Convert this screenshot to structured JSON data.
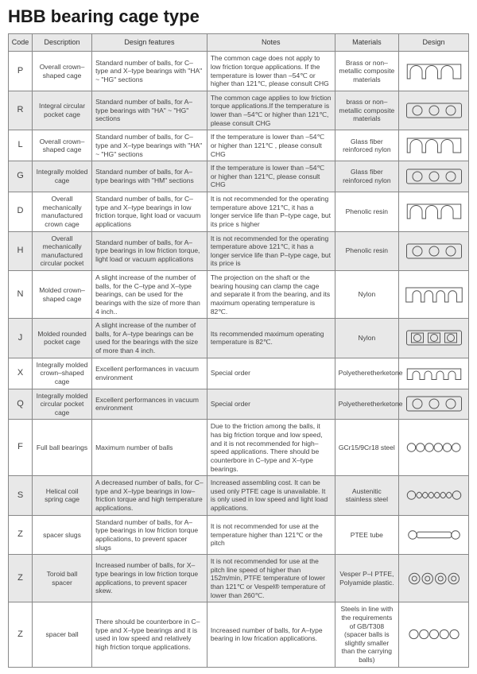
{
  "title": "HBB bearing cage type",
  "columns": [
    "Code",
    "Description",
    "Design features",
    "Notes",
    "Materials",
    "Design"
  ],
  "row_colors": {
    "plain": "#ffffff",
    "shaded": "#e8e8e8"
  },
  "border_color": "#888888",
  "svg_stroke": "#555555",
  "svg_stroke_width": 1.3,
  "rows": [
    {
      "code": "P",
      "desc": "Overall crown–shaped cage",
      "feat": "Standard number of balls, for C–type and X–type bearings with \"HA\" ~ \"HG\" sections",
      "notes": "The common cage does not apply to low friction torque applications. If the temperature is lower than –54℃ or higher than 121℃, please consult CHG",
      "mat": "Brass or non–metallic composite materials",
      "shaded": false,
      "shape": "crown3"
    },
    {
      "code": "R",
      "desc": "Integral circular pocket cage",
      "feat": "Standard number of balls, for A–type bearings with \"HA\" ~ \"HG\" sections",
      "notes": "The common cage applies to low friction torque applications.If the temperature is lower than –54℃ or higher than 121℃, please consult CHG",
      "mat": "brass or non–metallic composite materials",
      "shaded": true,
      "shape": "rect3circ"
    },
    {
      "code": "L",
      "desc": "Overall crown–shaped cage",
      "feat": "Standard number of balls, for C–type and X–type bearings with \"HA\" ~ \"HG\" sections",
      "notes": "If the temperature is lower than –54℃ or higher than 121℃ , please consult CHG",
      "mat": "Glass fiber reinforced nylon",
      "shaded": false,
      "shape": "crown3"
    },
    {
      "code": "G",
      "desc": "Integrally molded cage",
      "feat": "Standard number of balls, for A–type bearings with \"HM\" sections",
      "notes": "If the temperature is lower than –54℃ or higher than 121℃, please consult CHG",
      "mat": "Glass fiber reinforced nylon",
      "shaded": true,
      "shape": "rect3circ"
    },
    {
      "code": "D",
      "desc": "Overall mechanically manufactured crown cage",
      "feat": "Standard number of balls, for C–type and X–type bearings in low friction torque, light load or vacuum applications",
      "notes": "It is not recommended for the operating temperature above 121℃, it has a longer service life than P–type cage, but its price s higher",
      "mat": "Phenolic resin",
      "shaded": false,
      "shape": "crown3"
    },
    {
      "code": "H",
      "desc": "Overall mechanically manufactured circular pocket",
      "feat": "Standard number of balls, for A–type bearings in low friction torque, light load or vacuum applications",
      "notes": "It is not recommended for the operating temperature above 121℃, it has a longer service life than P–type cage, but its price is",
      "mat": "Phenolic resin",
      "shaded": true,
      "shape": "rect3circ"
    },
    {
      "code": "N",
      "desc": "Molded crown–shaped cage",
      "feat": "A slight increase of the number of balls, for the C–type and X–type bearings, can be used for the bearings with the size of more than 4 inch..",
      "notes": "The projection on the shaft or the bearing housing can clamp the cage and separate it from the bearing, and its maximum operating temperature is 82℃.",
      "mat": "Nylon",
      "shaded": false,
      "shape": "crown4"
    },
    {
      "code": "J",
      "desc": "Molded rounded pocket cage",
      "feat": "A slight increase of the number of balls, for A–type bearings can be used for the bearings with the size of more than 4 inch.",
      "notes": "Its recommended maximum operating temperature is 82℃.",
      "mat": "Nylon",
      "shaded": true,
      "shape": "rect3sq"
    },
    {
      "code": "X",
      "desc": "Integrally molded crown–shaped cage",
      "feat": "Excellent performances in vacuum environment",
      "notes": "Special order",
      "mat": "Polyetheretherketone",
      "shaded": false,
      "shape": "crown4sm"
    },
    {
      "code": "Q",
      "desc": "Integrally molded circular pocket cage",
      "feat": "Excellent performances in vacuum environment",
      "notes": "Special order",
      "mat": "Polyetheretherketone",
      "shaded": true,
      "shape": "rect3circ"
    },
    {
      "code": "F",
      "desc": "Full ball bearings",
      "feat": "Maximum number of balls",
      "notes": "Due to the friction among the balls, it has big friction torque and low speed, and it is not recommended for high–speed applications. There should be counterbore in C–type and X–type bearings.",
      "mat": "GCr15/9Cr18 steel",
      "shaded": false,
      "shape": "circ6"
    },
    {
      "code": "S",
      "desc": "Helical coil spring cage",
      "feat": "A decreased number of balls, for C–type and X–type bearings in low–friction torque and high temperature applications.",
      "notes": "Increased assembling cost. It can be used only PTFE cage is unavailable. It is only used in low speed and light load applications.",
      "mat": "Austenitic stainless steel",
      "shaded": true,
      "shape": "spring"
    },
    {
      "code": "Z",
      "desc": "spacer slugs",
      "feat": "Standard number of balls, for A–type bearings in low friction torque applications, to prevent spacer slugs",
      "notes": "It is not recommended for use at the temperature higher than 121℃ or the pitch",
      "mat": "PTEE tube",
      "shaded": false,
      "shape": "slug"
    },
    {
      "code": "Z",
      "desc": "Toroid ball spacer",
      "feat": "Increased number of balls, for X–type bearings in low friction torque applications, to prevent spacer skew.",
      "notes": "It is not recommended for use at the pitch line speed of higher than 152m/min, PTFE temperature of lower than 121℃ or Vespel® temperature of lower than 260℃.",
      "mat": "Vesper P–I PTFE, Polyamide plastic.",
      "shaded": true,
      "shape": "toroid"
    },
    {
      "code": "Z",
      "desc": "spacer ball",
      "feat": "There should be counterbore in C–type and X–type bearings and it is used in low speed and relatively high friction torque applications.",
      "notes": "Increased number of balls, for A–type bearing in low frication applications.",
      "mat": "Steels in line with the requirements of GB/T308 (spacer balls is slightly smaller than the carrying balls)",
      "shaded": false,
      "shape": "circ5"
    }
  ]
}
